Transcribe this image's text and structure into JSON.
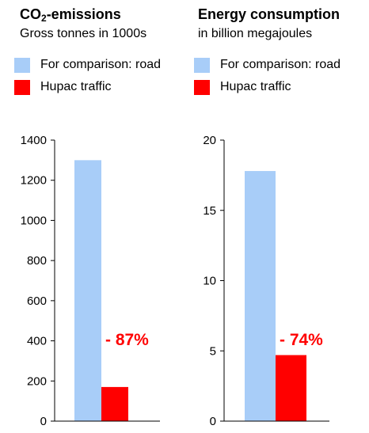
{
  "colors": {
    "comparison": "#a8cdf8",
    "hupac": "#ff0000",
    "axis": "#000000"
  },
  "chart_data": [
    {
      "type": "bar",
      "title_main": "CO",
      "title_sub": "2",
      "title_rest": "-emissions",
      "subtitle": "Gross tonnes in 1000s",
      "legend": [
        "For comparison: road",
        "Hupac traffic"
      ],
      "series": [
        {
          "name": "For comparison: road",
          "values": [
            1300
          ]
        },
        {
          "name": "Hupac traffic",
          "values": [
            170
          ]
        }
      ],
      "annotation": "- 87%",
      "ylim": [
        0,
        1400
      ],
      "yticks": [
        0,
        200,
        400,
        600,
        800,
        1000,
        1200,
        1400
      ],
      "grid": false
    },
    {
      "type": "bar",
      "title": "Energy consumption",
      "subtitle": "in billion megajoules",
      "legend": [
        "For comparison: road",
        "Hupac traffic"
      ],
      "series": [
        {
          "name": "For comparison: road",
          "values": [
            17.8
          ]
        },
        {
          "name": "Hupac traffic",
          "values": [
            4.7
          ]
        }
      ],
      "annotation": "- 74%",
      "ylim": [
        0,
        20
      ],
      "yticks": [
        0,
        5,
        10,
        15,
        20
      ],
      "grid": false
    }
  ]
}
